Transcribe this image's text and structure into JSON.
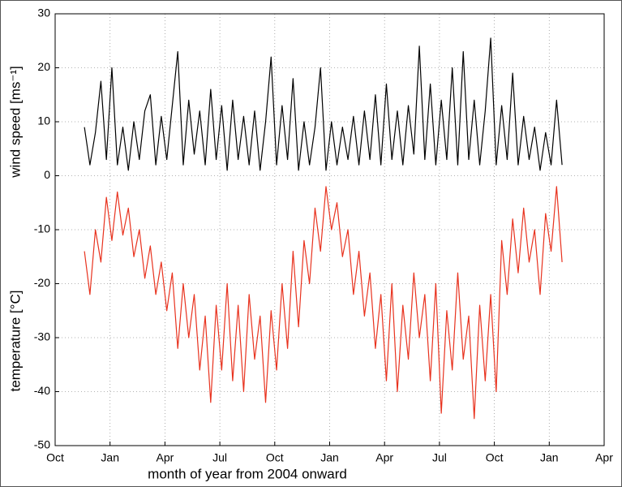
{
  "chart_data": {
    "type": "line",
    "xlabel": "month of year from 2004 onward",
    "x": [
      1.6,
      1.9,
      2.2,
      2.5,
      2.8,
      3.1,
      3.4,
      3.7,
      4.0,
      4.3,
      4.6,
      4.9,
      5.2,
      5.5,
      5.8,
      6.1,
      6.4,
      6.7,
      7.0,
      7.3,
      7.6,
      7.9,
      8.2,
      8.5,
      8.8,
      9.1,
      9.4,
      9.7,
      10.0,
      10.3,
      10.6,
      10.9,
      11.2,
      11.5,
      11.8,
      12.1,
      12.4,
      12.7,
      13.0,
      13.3,
      13.6,
      13.9,
      14.2,
      14.5,
      14.8,
      15.1,
      15.4,
      15.7,
      16.0,
      16.3,
      16.6,
      16.9,
      17.2,
      17.5,
      17.8,
      18.1,
      18.4,
      18.7,
      19.0,
      19.3,
      19.6,
      19.9,
      20.2,
      20.5,
      20.8,
      21.1,
      21.4,
      21.7,
      22.0,
      22.3,
      22.6,
      22.9,
      23.2,
      23.5,
      23.8,
      24.1,
      24.4,
      24.7,
      25.0,
      25.3,
      25.6,
      25.9,
      26.2,
      26.5,
      26.8,
      27.1,
      27.4,
      27.7
    ],
    "series": [
      {
        "name": "wind speed [ms⁻¹]",
        "color": "#000000",
        "values": [
          9,
          2,
          8,
          17.5,
          3,
          20,
          2,
          9,
          1,
          10,
          3,
          12,
          15,
          2,
          11,
          3,
          13,
          23,
          2,
          14,
          4,
          12,
          2,
          16,
          3,
          13,
          1,
          14,
          3,
          11,
          2,
          12,
          1,
          10,
          22,
          2,
          13,
          3,
          18,
          1,
          10,
          2,
          9,
          20,
          1,
          10,
          2,
          9,
          3,
          11,
          2,
          12,
          3,
          15,
          2,
          17,
          3,
          12,
          2,
          13,
          4,
          24,
          3,
          17,
          2,
          14,
          3,
          20,
          2,
          23,
          3,
          14,
          2,
          12,
          25.5,
          2,
          13,
          3,
          19,
          2,
          11,
          3,
          9,
          1,
          8,
          2,
          14,
          2
        ]
      },
      {
        "name": "temperature [°C]",
        "color": "#e8321e",
        "values": [
          -14,
          -22,
          -10,
          -16,
          -4,
          -12,
          -3,
          -11,
          -6,
          -15,
          -10,
          -19,
          -13,
          -22,
          -16,
          -25,
          -18,
          -32,
          -20,
          -30,
          -22,
          -36,
          -26,
          -42,
          -24,
          -36,
          -20,
          -38,
          -24,
          -40,
          -22,
          -34,
          -26,
          -42,
          -25,
          -36,
          -20,
          -32,
          -14,
          -28,
          -12,
          -20,
          -6,
          -14,
          -2,
          -10,
          -5,
          -15,
          -10,
          -22,
          -14,
          -26,
          -18,
          -32,
          -22,
          -38,
          -20,
          -40,
          -24,
          -34,
          -18,
          -30,
          -22,
          -38,
          -20,
          -44,
          -25,
          -36,
          -18,
          -34,
          -26,
          -45,
          -24,
          -38,
          -22,
          -40,
          -12,
          -22,
          -8,
          -18,
          -6,
          -16,
          -10,
          -22,
          -7,
          -14,
          -2,
          -16
        ]
      }
    ],
    "xlim": [
      0,
      30
    ],
    "xticks": [
      {
        "value": 0,
        "label": "Oct"
      },
      {
        "value": 3,
        "label": "Jan"
      },
      {
        "value": 6,
        "label": "Apr"
      },
      {
        "value": 9,
        "label": "Jul"
      },
      {
        "value": 12,
        "label": "Oct"
      },
      {
        "value": 15,
        "label": "Jan"
      },
      {
        "value": 18,
        "label": "Apr"
      },
      {
        "value": 21,
        "label": "Jul"
      },
      {
        "value": 24,
        "label": "Oct"
      },
      {
        "value": 27,
        "label": "Jan"
      },
      {
        "value": 30,
        "label": "Apr"
      }
    ],
    "ylim": [
      -50,
      30
    ],
    "yticks": [
      -50,
      -40,
      -30,
      -20,
      -10,
      0,
      10,
      20,
      30
    ],
    "grid": true
  }
}
